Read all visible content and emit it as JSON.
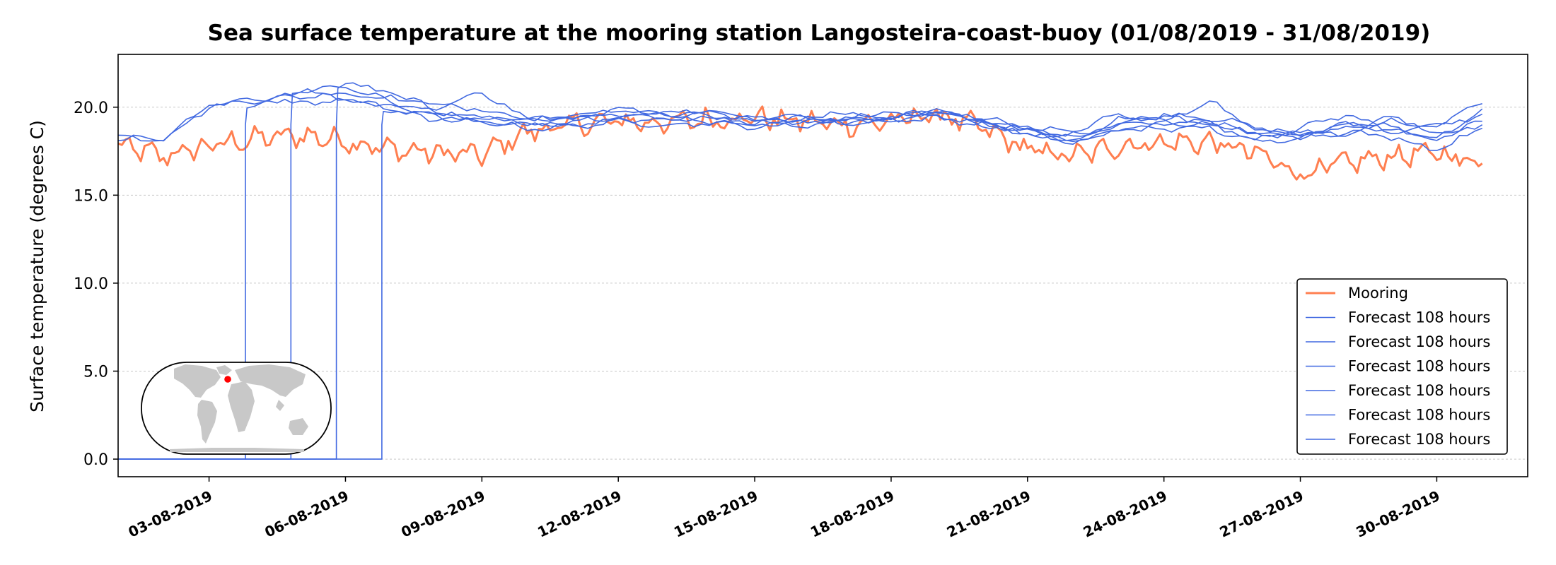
{
  "chart_data": {
    "type": "line",
    "title": "Sea surface temperature at the mooring station Langosteira-coast-buoy (01/08/2019 - 31/08/2019)",
    "ylabel": "Surface temperature (degrees C)",
    "xlabel": "",
    "ylim": [
      -1.0,
      23.0
    ],
    "xlim": [
      "2019-08-01",
      "2019-09-01"
    ],
    "yticks": [
      "0.0",
      "5.0",
      "10.0",
      "15.0",
      "20.0"
    ],
    "xticks": [
      "03-08-2019",
      "06-08-2019",
      "09-08-2019",
      "12-08-2019",
      "15-08-2019",
      "18-08-2019",
      "21-08-2019",
      "24-08-2019",
      "27-08-2019",
      "30-08-2019"
    ],
    "grid": "horizontal dotted",
    "legend_position": "lower right",
    "inset": "world map with red dot marking the station location",
    "colors": {
      "mooring": "#ff7f50",
      "forecast": "#4169e1",
      "map_land": "#c8c8c8",
      "map_dot": "#ff0000"
    },
    "series": [
      {
        "name": "Mooring",
        "x": [
          "2019-08-01",
          "2019-08-02",
          "2019-08-03",
          "2019-08-04",
          "2019-08-05",
          "2019-08-06",
          "2019-08-07",
          "2019-08-08",
          "2019-08-09",
          "2019-08-10",
          "2019-08-11",
          "2019-08-12",
          "2019-08-13",
          "2019-08-14",
          "2019-08-15",
          "2019-08-16",
          "2019-08-17",
          "2019-08-18",
          "2019-08-19",
          "2019-08-20",
          "2019-08-21",
          "2019-08-22",
          "2019-08-23",
          "2019-08-24",
          "2019-08-25",
          "2019-08-26",
          "2019-08-27",
          "2019-08-28",
          "2019-08-29",
          "2019-08-30",
          "2019-08-31"
        ],
        "values": [
          17.8,
          17.2,
          17.8,
          18.2,
          18.4,
          18.1,
          17.6,
          17.4,
          17.3,
          18.6,
          19.0,
          19.2,
          19.1,
          19.3,
          19.4,
          19.2,
          19.0,
          19.2,
          19.6,
          18.8,
          17.6,
          17.2,
          17.8,
          18.0,
          18.0,
          17.4,
          16.2,
          16.8,
          17.2,
          17.4,
          16.8
        ]
      },
      {
        "name": "Forecast 108 hours",
        "x": [
          "2019-08-01",
          "2019-08-02",
          "2019-08-03",
          "2019-08-04",
          "2019-08-05",
          "2019-08-06",
          "2019-08-07",
          "2019-08-08",
          "2019-08-09",
          "2019-08-10",
          "2019-08-11",
          "2019-08-12",
          "2019-08-13",
          "2019-08-14",
          "2019-08-15",
          "2019-08-16",
          "2019-08-17",
          "2019-08-18",
          "2019-08-19",
          "2019-08-20",
          "2019-08-21",
          "2019-08-22",
          "2019-08-23",
          "2019-08-24",
          "2019-08-25",
          "2019-08-26",
          "2019-08-27",
          "2019-08-28",
          "2019-08-29",
          "2019-08-30",
          "2019-08-31"
        ],
        "values": [
          18.3,
          18.2,
          20.0,
          20.4,
          20.6,
          20.8,
          20.5,
          20.2,
          19.8,
          19.4,
          19.4,
          19.6,
          19.5,
          19.6,
          19.4,
          19.3,
          19.4,
          19.5,
          19.7,
          19.3,
          18.6,
          18.4,
          19.0,
          19.6,
          19.4,
          18.9,
          18.4,
          18.8,
          19.2,
          18.8,
          19.6
        ]
      },
      {
        "name": "Forecast 108 hours",
        "x": [
          "2019-08-01",
          "2019-08-02",
          "2019-08-03",
          "2019-08-04",
          "2019-08-05",
          "2019-08-06",
          "2019-08-07",
          "2019-08-08",
          "2019-08-09",
          "2019-08-10",
          "2019-08-11",
          "2019-08-12",
          "2019-08-13",
          "2019-08-14",
          "2019-08-15",
          "2019-08-16",
          "2019-08-17",
          "2019-08-18",
          "2019-08-19",
          "2019-08-20",
          "2019-08-21",
          "2019-08-22",
          "2019-08-23",
          "2019-08-24",
          "2019-08-25",
          "2019-08-26",
          "2019-08-27",
          "2019-08-28",
          "2019-08-29",
          "2019-08-30",
          "2019-08-31"
        ],
        "values": [
          18.2,
          18.3,
          19.6,
          20.2,
          20.9,
          21.2,
          20.3,
          19.7,
          19.4,
          19.2,
          19.5,
          19.8,
          19.6,
          19.5,
          19.2,
          19.4,
          19.3,
          19.4,
          19.9,
          19.0,
          18.4,
          18.2,
          19.3,
          19.4,
          19.1,
          18.5,
          18.2,
          19.2,
          18.9,
          18.2,
          19.9
        ]
      },
      {
        "name": "Forecast 108 hours",
        "x": [
          "2019-08-01",
          "2019-08-02",
          "2019-08-03",
          "2019-08-04",
          "2019-08-05",
          "2019-08-06",
          "2019-08-07",
          "2019-08-08",
          "2019-08-09",
          "2019-08-10",
          "2019-08-11",
          "2019-08-12",
          "2019-08-13",
          "2019-08-14",
          "2019-08-15",
          "2019-08-16",
          "2019-08-17",
          "2019-08-18",
          "2019-08-19",
          "2019-08-20",
          "2019-08-21",
          "2019-08-22",
          "2019-08-23",
          "2019-08-24",
          "2019-08-25",
          "2019-08-26",
          "2019-08-27",
          "2019-08-28",
          "2019-08-29",
          "2019-08-30",
          "2019-08-31"
        ],
        "values": [
          18.3,
          18.4,
          19.2,
          20.6,
          21.0,
          20.5,
          19.9,
          19.5,
          19.1,
          19.0,
          19.2,
          19.5,
          19.4,
          19.2,
          19.0,
          19.1,
          19.3,
          19.3,
          19.8,
          19.2,
          18.9,
          18.0,
          18.6,
          19.1,
          20.4,
          18.7,
          18.6,
          18.4,
          19.6,
          18.4,
          19.2
        ]
      },
      {
        "name": "Forecast 108 hours",
        "x": [
          "2019-08-01",
          "2019-08-02",
          "2019-08-03",
          "2019-08-04",
          "2019-08-05",
          "2019-08-06",
          "2019-08-07",
          "2019-08-08",
          "2019-08-09",
          "2019-08-10",
          "2019-08-11",
          "2019-08-12",
          "2019-08-13",
          "2019-08-14",
          "2019-08-15",
          "2019-08-16",
          "2019-08-17",
          "2019-08-18",
          "2019-08-19",
          "2019-08-20",
          "2019-08-21",
          "2019-08-22",
          "2019-08-23",
          "2019-08-24",
          "2019-08-25",
          "2019-08-26",
          "2019-08-27",
          "2019-08-28",
          "2019-08-29",
          "2019-08-30",
          "2019-08-31"
        ],
        "values": [
          18.2,
          18.2,
          19.8,
          20.1,
          20.5,
          21.4,
          20.8,
          19.9,
          20.9,
          19.3,
          19.3,
          19.9,
          19.7,
          19.8,
          19.3,
          19.5,
          19.6,
          19.6,
          19.6,
          19.4,
          18.8,
          18.6,
          19.6,
          19.2,
          19.0,
          18.2,
          18.8,
          19.6,
          18.6,
          19.0,
          20.2
        ]
      },
      {
        "name": "Forecast 108 hours",
        "x": [
          "2019-08-01",
          "2019-08-02",
          "2019-08-03",
          "2019-08-04",
          "2019-08-05",
          "2019-08-06",
          "2019-08-07",
          "2019-08-08",
          "2019-08-09",
          "2019-08-10",
          "2019-08-11",
          "2019-08-12",
          "2019-08-13",
          "2019-08-14",
          "2019-08-15",
          "2019-08-16",
          "2019-08-17",
          "2019-08-18",
          "2019-08-19",
          "2019-08-20",
          "2019-08-21",
          "2019-08-22",
          "2019-08-23",
          "2019-08-24",
          "2019-08-25",
          "2019-08-26",
          "2019-08-27",
          "2019-08-28",
          "2019-08-29",
          "2019-08-30",
          "2019-08-31"
        ],
        "values": [
          18.3,
          18.3,
          19.4,
          20.3,
          20.7,
          20.2,
          19.8,
          19.3,
          19.2,
          18.8,
          18.9,
          19.2,
          19.0,
          19.1,
          18.9,
          19.0,
          19.1,
          19.2,
          19.4,
          19.0,
          18.5,
          17.9,
          18.8,
          18.8,
          18.8,
          18.0,
          18.3,
          18.6,
          18.3,
          17.6,
          18.8
        ]
      },
      {
        "name": "Forecast 108 hours",
        "x": [
          "2019-08-01",
          "2019-08-02",
          "2019-08-03",
          "2019-08-04",
          "2019-08-05",
          "2019-08-06",
          "2019-08-07",
          "2019-08-08",
          "2019-08-09",
          "2019-08-10",
          "2019-08-11",
          "2019-08-12",
          "2019-08-13",
          "2019-08-14",
          "2019-08-15",
          "2019-08-16",
          "2019-08-17",
          "2019-08-18",
          "2019-08-19",
          "2019-08-20",
          "2019-08-21",
          "2019-08-22",
          "2019-08-23",
          "2019-08-24",
          "2019-08-25",
          "2019-08-26",
          "2019-08-27",
          "2019-08-28",
          "2019-08-29",
          "2019-08-30",
          "2019-08-31"
        ],
        "values": [
          18.2,
          18.2,
          20.2,
          20.5,
          20.2,
          20.4,
          20.0,
          19.6,
          19.3,
          19.1,
          19.0,
          19.3,
          19.3,
          19.4,
          19.1,
          19.2,
          19.2,
          19.3,
          19.5,
          19.1,
          18.6,
          18.1,
          19.1,
          19.0,
          19.2,
          18.4,
          18.5,
          19.0,
          18.8,
          18.1,
          19.0
        ]
      }
    ]
  }
}
